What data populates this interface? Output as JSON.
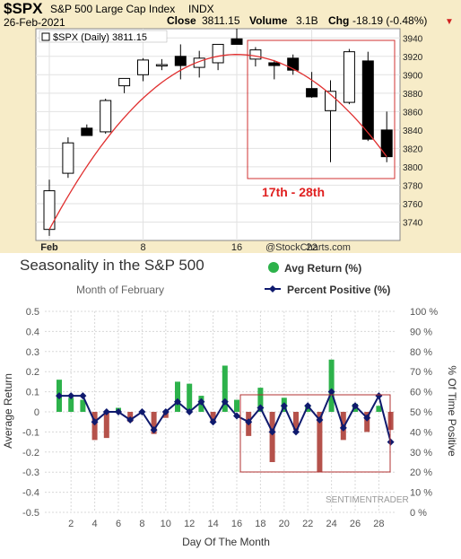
{
  "header": {
    "ticker": "$SPX",
    "name": "S&P 500 Large Cap Index",
    "exchange": "INDX",
    "date": "26-Feb-2021",
    "close_label": "Close",
    "close_value": "3811.15",
    "volume_label": "Volume",
    "volume_value": "3.1B",
    "chg_label": "Chg",
    "chg_value": "-18.19 (-0.48%)",
    "chg_arrow": "▼",
    "watermark": "@StockCharts.com",
    "legend_label": "$SPX (Daily) 3811.15",
    "annotation": "17th - 28th"
  },
  "colors": {
    "top_bg": "#f7ecc8",
    "arc": "#e03030",
    "annotation": "#e02020",
    "up_candle": "#ffffff",
    "down_candle": "#000000",
    "bar_green": "#2db24b",
    "bar_red": "#b5524b",
    "line": "#0f1a6e",
    "box": "#b03030"
  },
  "chart_data": [
    {
      "type": "candlestick",
      "title": "$SPX (Daily) 3811.15",
      "ylim": [
        3720,
        3950
      ],
      "yticks": [
        3740,
        3760,
        3780,
        3800,
        3820,
        3840,
        3860,
        3880,
        3900,
        3920,
        3940
      ],
      "xtick_labels": [
        "Feb",
        "8",
        "16",
        "22"
      ],
      "xtick_index": [
        0,
        5,
        10,
        14
      ],
      "candles": [
        {
          "o": 3732,
          "h": 3786,
          "l": 3725,
          "c": 3774
        },
        {
          "o": 3793,
          "h": 3832,
          "l": 3788,
          "c": 3826
        },
        {
          "o": 3842,
          "h": 3846,
          "l": 3834,
          "c": 3834
        },
        {
          "o": 3838,
          "h": 3874,
          "l": 3836,
          "c": 3872
        },
        {
          "o": 3888,
          "h": 3895,
          "l": 3880,
          "c": 3896
        },
        {
          "o": 3900,
          "h": 3918,
          "l": 3893,
          "c": 3916
        },
        {
          "o": 3911,
          "h": 3917,
          "l": 3905,
          "c": 3911
        },
        {
          "o": 3920,
          "h": 3933,
          "l": 3895,
          "c": 3910
        },
        {
          "o": 3908,
          "h": 3926,
          "l": 3897,
          "c": 3918
        },
        {
          "o": 3913,
          "h": 3933,
          "l": 3905,
          "c": 3933
        },
        {
          "o": 3939,
          "h": 3950,
          "l": 3933,
          "c": 3933
        },
        {
          "o": 3917,
          "h": 3930,
          "l": 3909,
          "c": 3927
        },
        {
          "o": 3913,
          "h": 3916,
          "l": 3895,
          "c": 3910
        },
        {
          "o": 3918,
          "h": 3922,
          "l": 3900,
          "c": 3905
        },
        {
          "o": 3885,
          "h": 3903,
          "l": 3875,
          "c": 3876
        },
        {
          "o": 3861,
          "h": 3894,
          "l": 3805,
          "c": 3882
        },
        {
          "o": 3870,
          "h": 3928,
          "l": 3868,
          "c": 3925
        },
        {
          "o": 3915,
          "h": 3925,
          "l": 3828,
          "c": 3830
        },
        {
          "o": 3840,
          "h": 3860,
          "l": 3805,
          "c": 3811
        }
      ]
    },
    {
      "type": "bar+line",
      "title": "Seasonality in the S&P 500",
      "subtitle": "Month of February",
      "xlabel": "Day Of The Month",
      "ylabel": "Average Return",
      "y2label": "% Of Time Positive",
      "ylim": [
        -0.5,
        0.5
      ],
      "y2lim": [
        0,
        100
      ],
      "yticks": [
        -0.5,
        -0.4,
        -0.3,
        -0.2,
        -0.1,
        0,
        0.1,
        0.2,
        0.3,
        0.4,
        0.5
      ],
      "ytick_labels": [
        "-0.5",
        "-0.4",
        "-0.3",
        "-0.2",
        "-0.1",
        "0",
        "0.1",
        "0.2",
        "0.3",
        "0.4",
        "0.5"
      ],
      "y2tick_labels": [
        "0 %",
        "10 %",
        "20 %",
        "30 %",
        "40 %",
        "50 %",
        "60 %",
        "70 %",
        "80 %",
        "90 %",
        "100 %"
      ],
      "xticks": [
        2,
        4,
        6,
        8,
        10,
        12,
        14,
        16,
        18,
        20,
        22,
        24,
        26,
        28
      ],
      "x": [
        1,
        2,
        3,
        4,
        5,
        6,
        7,
        8,
        9,
        10,
        11,
        12,
        13,
        14,
        15,
        16,
        17,
        18,
        19,
        20,
        21,
        22,
        23,
        24,
        25,
        26,
        27,
        28,
        29
      ],
      "series": [
        {
          "name": "Avg Return (%)",
          "values": [
            0.16,
            0.07,
            0.06,
            -0.14,
            -0.13,
            0.02,
            -0.05,
            0.0,
            -0.11,
            -0.03,
            0.15,
            0.14,
            0.08,
            -0.05,
            0.23,
            0.06,
            -0.12,
            0.12,
            -0.25,
            0.07,
            -0.09,
            0.03,
            -0.3,
            0.26,
            -0.14,
            0.04,
            -0.1,
            0.03,
            -0.09
          ]
        },
        {
          "name": "Percent Positive (%)",
          "values": [
            58,
            58,
            58,
            45,
            50,
            50,
            46,
            50,
            41,
            50,
            55,
            50,
            55,
            45,
            55,
            48,
            45,
            52,
            40,
            53,
            40,
            53,
            46,
            60,
            42,
            53,
            47,
            58,
            35
          ]
        }
      ],
      "legend": "top-right",
      "watermark": "SENTIMENTRADER"
    }
  ]
}
